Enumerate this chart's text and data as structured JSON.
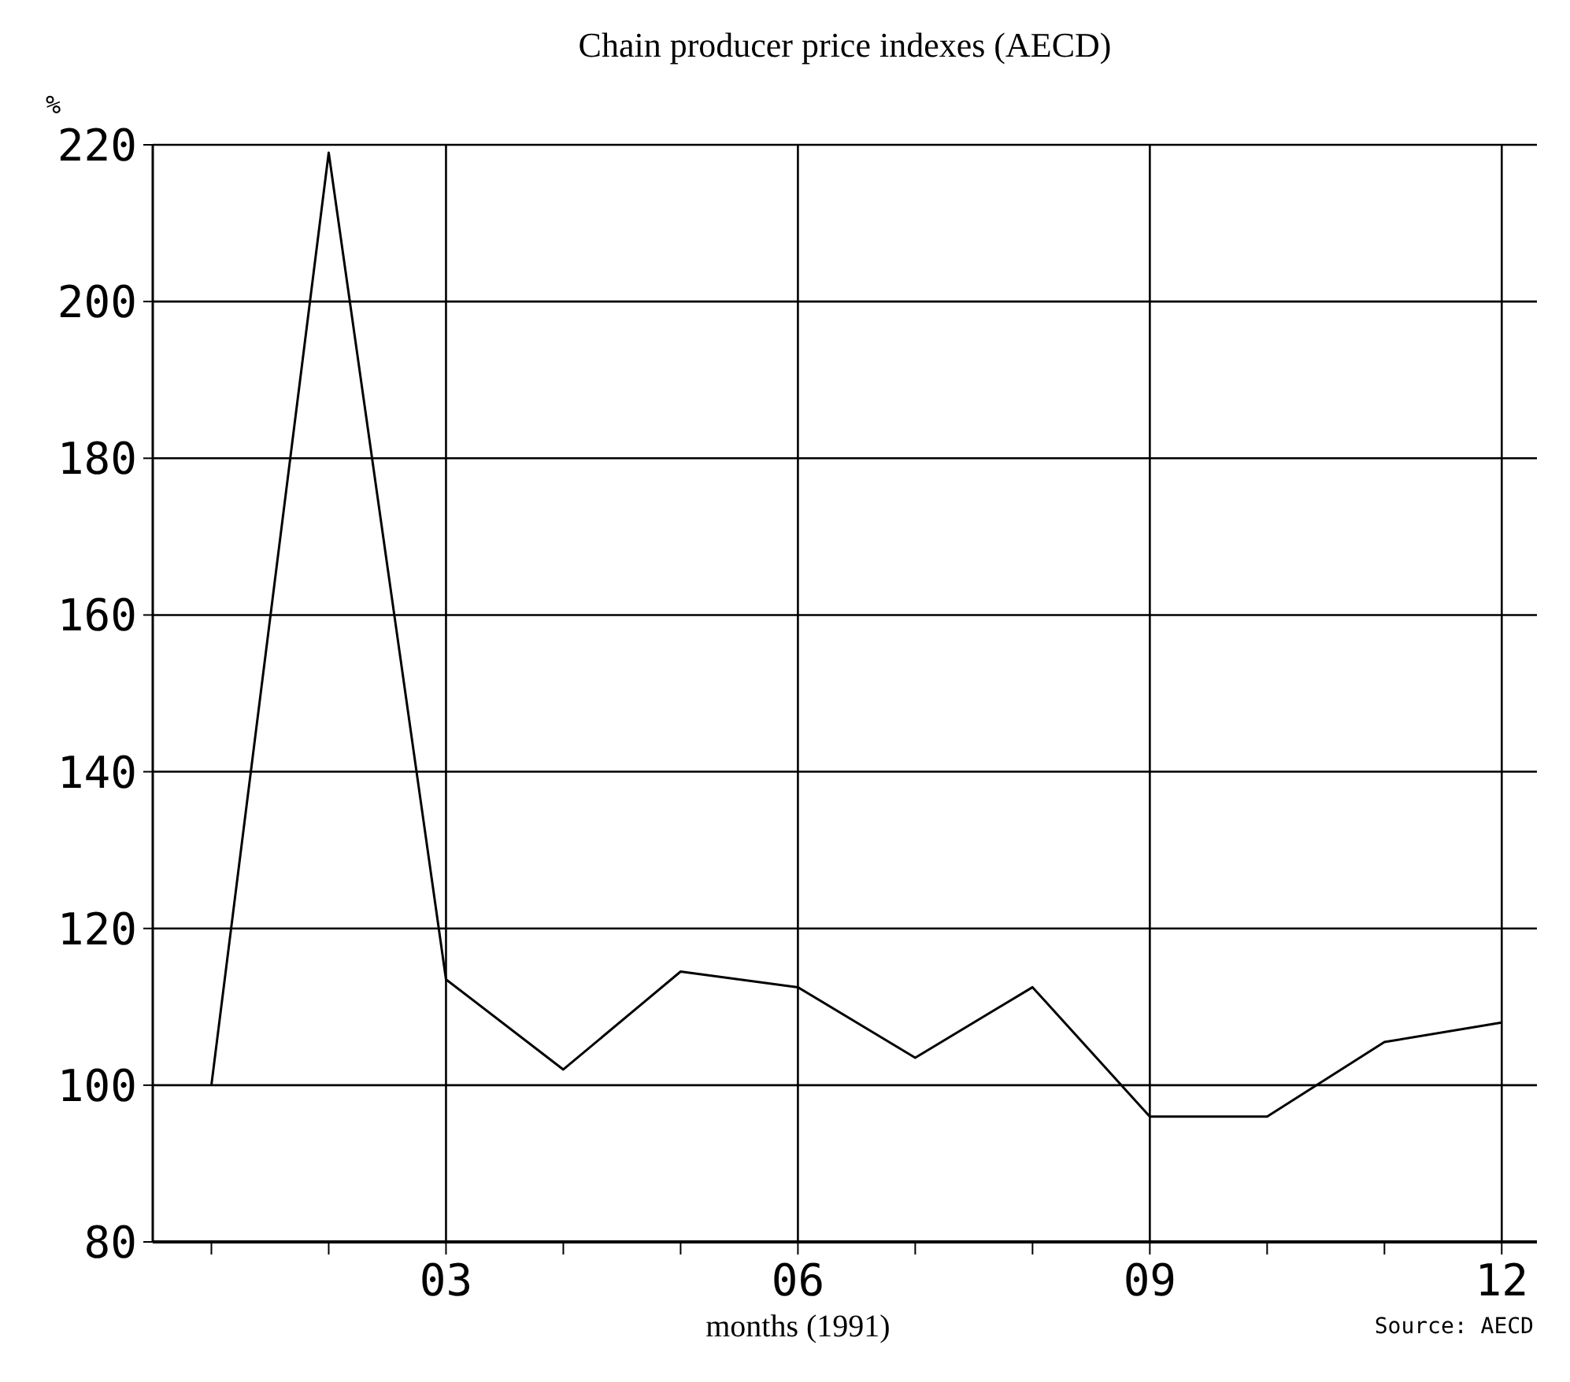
{
  "chart_data": {
    "type": "line",
    "title": "Chain producer price indexes (AECD)",
    "xlabel": "months (1991)",
    "ylabel": "%",
    "x": [
      1,
      2,
      3,
      4,
      5,
      6,
      7,
      8,
      9,
      10,
      11,
      12
    ],
    "series": [
      {
        "color": "#000000",
        "values": [
          100,
          219,
          113.5,
          102,
          114.5,
          112.5,
          103.5,
          112.5,
          96,
          96,
          105.5,
          108
        ]
      }
    ],
    "xlim": [
      0.5,
      12.3
    ],
    "xticks": [
      {
        "value": 1,
        "label": null
      },
      {
        "value": 2,
        "label": null
      },
      {
        "value": 3,
        "label": "03"
      },
      {
        "value": 4,
        "label": null
      },
      {
        "value": 5,
        "label": null
      },
      {
        "value": 6,
        "label": "06"
      },
      {
        "value": 7,
        "label": null
      },
      {
        "value": 8,
        "label": null
      },
      {
        "value": 9,
        "label": "09"
      },
      {
        "value": 10,
        "label": null
      },
      {
        "value": 11,
        "label": null
      },
      {
        "value": 12,
        "label": "12"
      }
    ],
    "ylim": [
      80,
      220
    ],
    "yticks": [
      80,
      100,
      120,
      140,
      160,
      180,
      200,
      220
    ],
    "grid": true,
    "marker": "none",
    "line_style": "solid",
    "annotations": [
      "Source: AECD"
    ]
  }
}
